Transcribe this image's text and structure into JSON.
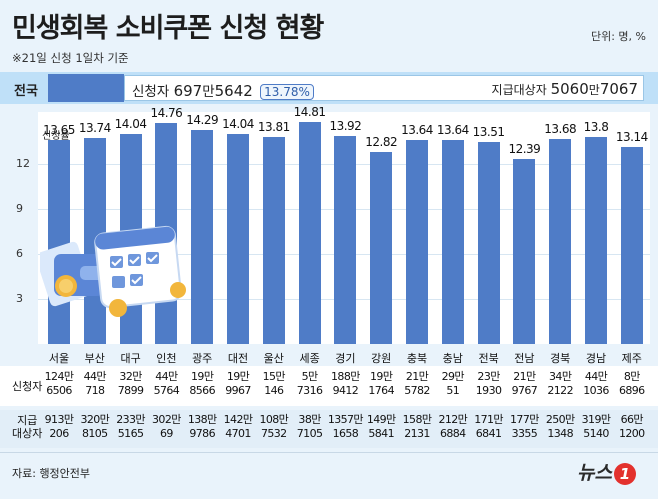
{
  "header": {
    "title": "민생회복 소비쿠폰 신청 현황",
    "unit": "단위: 명, %",
    "subtitle": "※21일 신청 1일차 기준"
  },
  "national": {
    "label": "전국",
    "applicants_label": "신청자",
    "applicants_man": "697",
    "applicants_rest": "5642",
    "rate": "13.78%",
    "target_label": "지급대상자",
    "target_man": "5060",
    "target_rest": "7067",
    "unit_man": "만"
  },
  "chart_data": {
    "type": "bar",
    "rate_label": "신청률",
    "categories": [
      "서울",
      "부산",
      "대구",
      "인천",
      "광주",
      "대전",
      "울산",
      "세종",
      "경기",
      "강원",
      "충북",
      "충남",
      "전북",
      "전남",
      "경북",
      "경남",
      "제주"
    ],
    "values": [
      13.65,
      13.74,
      14.04,
      14.76,
      14.29,
      14.04,
      13.81,
      14.81,
      13.92,
      12.82,
      13.64,
      13.64,
      13.51,
      12.39,
      13.68,
      13.8,
      13.14
    ],
    "value_labels": [
      "13.65",
      "13.74",
      "14.04",
      "14.76",
      "14.29",
      "14.04",
      "13.81",
      "14.81",
      "13.92",
      "12.82",
      "13.64",
      "13.64",
      "13.51",
      "12.39",
      "13.68",
      "13.8",
      "13.14"
    ],
    "yticks": [
      "3",
      "6",
      "9",
      "12"
    ],
    "ylim": [
      0,
      15.5
    ],
    "bar_color": "#4f7cc7"
  },
  "table": {
    "row1_label": [
      "신청자"
    ],
    "row2_label": [
      "지급",
      "대상자"
    ],
    "applicants": [
      [
        "124만",
        "6506"
      ],
      [
        "44만",
        "718"
      ],
      [
        "32만",
        "7899"
      ],
      [
        "44만",
        "5764"
      ],
      [
        "19만",
        "8566"
      ],
      [
        "19만",
        "9967"
      ],
      [
        "15만",
        "146"
      ],
      [
        "5만",
        "7316"
      ],
      [
        "188만",
        "9412"
      ],
      [
        "19만",
        "1764"
      ],
      [
        "21만",
        "5782"
      ],
      [
        "29만",
        "51"
      ],
      [
        "23만",
        "1930"
      ],
      [
        "21만",
        "9767"
      ],
      [
        "34만",
        "2122"
      ],
      [
        "44만",
        "1036"
      ],
      [
        "8만",
        "6896"
      ]
    ],
    "targets": [
      [
        "913만",
        "206"
      ],
      [
        "320만",
        "8105"
      ],
      [
        "233만",
        "5165"
      ],
      [
        "302만",
        "69"
      ],
      [
        "138만",
        "9786"
      ],
      [
        "142만",
        "4701"
      ],
      [
        "108만",
        "7532"
      ],
      [
        "38만",
        "7105"
      ],
      [
        "1357만",
        "1658"
      ],
      [
        "149만",
        "5841"
      ],
      [
        "158만",
        "2131"
      ],
      [
        "212만",
        "6884"
      ],
      [
        "171만",
        "6841"
      ],
      [
        "177만",
        "3355"
      ],
      [
        "250만",
        "1348"
      ],
      [
        "319만",
        "5140"
      ],
      [
        "66만",
        "1200"
      ]
    ]
  },
  "footer": {
    "source": "자료: 행정안전부",
    "logo_text": "뉴스",
    "logo_num": "1"
  }
}
